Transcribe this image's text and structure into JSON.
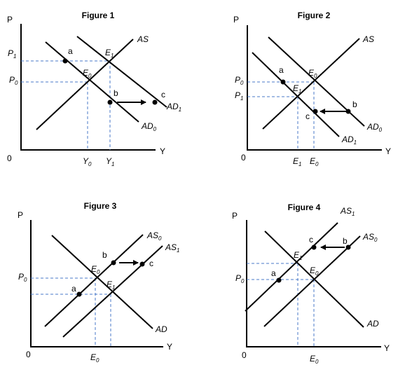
{
  "figures": [
    {
      "title": "Figure 1",
      "axis_y": "P",
      "axis_x": "Y",
      "origin": "0",
      "curve_labels": [
        {
          "main": "AS",
          "sub": ""
        },
        {
          "main": "AD",
          "sub": "1"
        },
        {
          "main": "AD",
          "sub": "0"
        }
      ],
      "point_labels": [
        "a",
        "b",
        "c"
      ],
      "eq_labels": [
        {
          "main": "E",
          "sub": "1"
        },
        {
          "main": "E",
          "sub": "0"
        }
      ],
      "y_ticks": [
        {
          "main": "P",
          "sub": "1"
        },
        {
          "main": "P",
          "sub": "0"
        }
      ],
      "x_ticks": [
        {
          "main": "Y",
          "sub": "0"
        },
        {
          "main": "Y",
          "sub": "1"
        }
      ]
    },
    {
      "title": "Figure 2",
      "axis_y": "P",
      "axis_x": "Y",
      "origin": "0",
      "curve_labels": [
        {
          "main": "AS",
          "sub": ""
        },
        {
          "main": "AD",
          "sub": "0"
        },
        {
          "main": "AD",
          "sub": "1"
        }
      ],
      "point_labels": [
        "a",
        "b",
        "c"
      ],
      "eq_labels": [
        {
          "main": "E",
          "sub": "0"
        },
        {
          "main": "E",
          "sub": "1"
        }
      ],
      "y_ticks": [
        {
          "main": "P",
          "sub": "0"
        },
        {
          "main": "P",
          "sub": "1"
        }
      ],
      "x_ticks": [
        {
          "main": "E",
          "sub": "1"
        },
        {
          "main": "E",
          "sub": "0"
        }
      ]
    },
    {
      "title": "Figure 3",
      "axis_y": "P",
      "axis_x": "Y",
      "origin": "0",
      "curve_labels": [
        {
          "main": "AS",
          "sub": "0"
        },
        {
          "main": "AS",
          "sub": "1"
        },
        {
          "main": "AD",
          "sub": ""
        }
      ],
      "point_labels": [
        "a",
        "b",
        "c"
      ],
      "eq_labels": [
        {
          "main": "E",
          "sub": "0"
        },
        {
          "main": "E",
          "sub": "1"
        }
      ],
      "y_ticks": [
        {
          "main": "P",
          "sub": "0"
        }
      ],
      "x_ticks": [
        {
          "main": "E",
          "sub": "0"
        }
      ]
    },
    {
      "title": "Figure 4",
      "axis_y": "P",
      "axis_x": "Y",
      "origin": "0",
      "curve_labels": [
        {
          "main": "AS",
          "sub": "1"
        },
        {
          "main": "AS",
          "sub": "0"
        },
        {
          "main": "AD",
          "sub": ""
        }
      ],
      "point_labels": [
        "a",
        "b",
        "c"
      ],
      "eq_labels": [
        {
          "main": "E",
          "sub": "1"
        },
        {
          "main": "E",
          "sub": "0"
        }
      ],
      "y_ticks": [
        {
          "main": "P",
          "sub": "0"
        }
      ],
      "x_ticks": [
        {
          "main": "E",
          "sub": "0"
        }
      ]
    }
  ]
}
